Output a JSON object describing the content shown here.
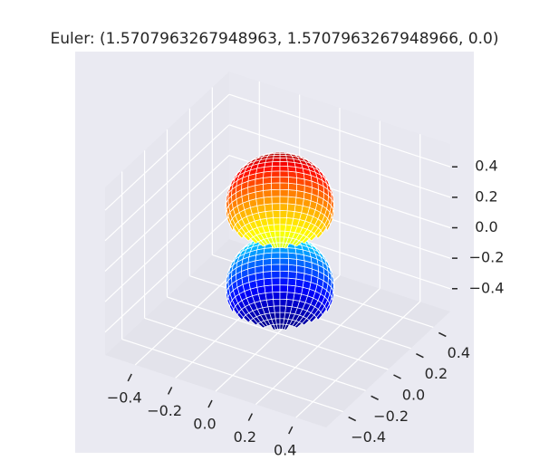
{
  "chart_data": {
    "type": "surface3d",
    "title": "Euler: (1.5707963267948963, 1.5707963267948966, 0.0)",
    "xlim": [
      -0.55,
      0.55
    ],
    "ylim": [
      -0.55,
      0.55
    ],
    "zlim": [
      -0.55,
      0.55
    ],
    "xticks": [
      {
        "value": -0.4,
        "label": "−0.4"
      },
      {
        "value": -0.2,
        "label": "−0.2"
      },
      {
        "value": 0,
        "label": "0.0"
      },
      0.2,
      0.4
    ],
    "yticks": [
      {
        "value": -0.4,
        "label": "−0.4"
      },
      {
        "value": -0.2,
        "label": "−0.2"
      },
      {
        "value": 0,
        "label": "0.0"
      },
      0.2,
      0.4
    ],
    "zticks": [
      {
        "value": -0.4,
        "label": "−0.4"
      },
      {
        "value": -0.2,
        "label": "−0.2"
      },
      {
        "value": 0,
        "label": "0.0"
      },
      0.2,
      0.4
    ],
    "grid": true,
    "colormap": "jet"
  }
}
